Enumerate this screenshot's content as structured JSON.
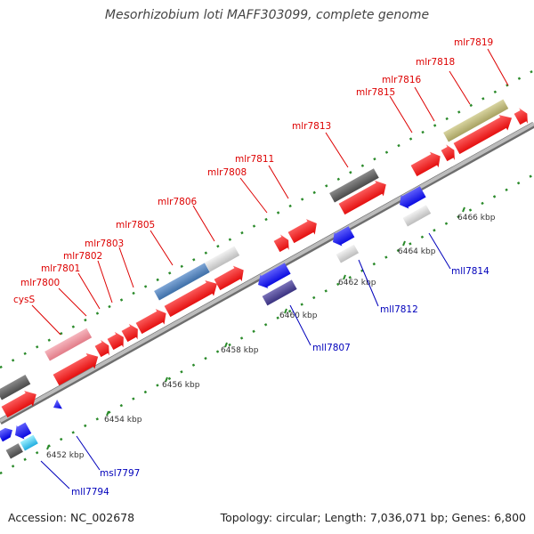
{
  "title": "Mesorhizobium loti MAFF303099, complete genome",
  "footer": {
    "accession": "Accession: NC_002678",
    "summary": "Topology: circular; Length: 7,036,071 bp; Genes: 6,800"
  },
  "colors": {
    "forward_gene": "#ff1a1a",
    "reverse_gene": "#1a1aff",
    "backbone": "#9a9a9a",
    "tick": "#2a8a2a",
    "forward_label": "#dd0000",
    "reverse_label": "#0000bb"
  },
  "scale_labels": [
    "6452 kbp",
    "6454 kbp",
    "6456 kbp",
    "6458 kbp",
    "6460 kbp",
    "6462 kbp",
    "6464 kbp",
    "6466 kbp"
  ],
  "forward_labels": [
    "cysS",
    "mlr7800",
    "mlr7801",
    "mlr7802",
    "mlr7803",
    "mlr7805",
    "mlr7806",
    "mlr7808",
    "mlr7811",
    "mlr7813",
    "mlr7815",
    "mlr7816",
    "mlr7818",
    "mlr7819"
  ],
  "reverse_labels": [
    "mll7794",
    "msl7797",
    "mll7807",
    "mll7812",
    "mll7814"
  ]
}
